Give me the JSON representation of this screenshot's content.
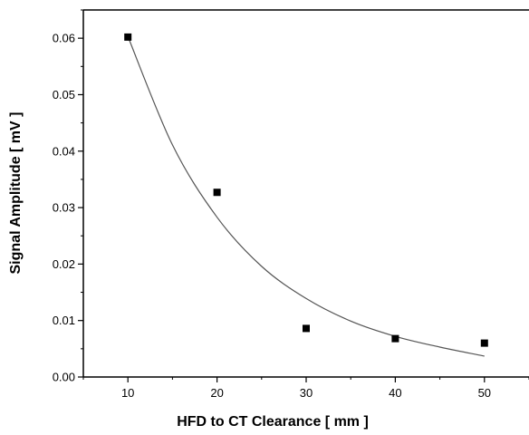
{
  "chart_data": {
    "type": "scatter",
    "title": "",
    "xlabel": "HFD to CT Clearance [ mm ]",
    "ylabel": "Signal Amplitude [ mV ]",
    "xlim": [
      5,
      55
    ],
    "ylim": [
      0,
      0.065
    ],
    "x_ticks": [
      10,
      20,
      30,
      40,
      50
    ],
    "x_tick_labels": [
      "10",
      "20",
      "30",
      "40",
      "50"
    ],
    "y_ticks": [
      0,
      0.01,
      0.02,
      0.03,
      0.04,
      0.05,
      0.06
    ],
    "y_tick_labels": [
      "0.00",
      "0.01",
      "0.02",
      "0.03",
      "0.04",
      "0.05",
      "0.06"
    ],
    "grid": false,
    "legend": "none",
    "series": [
      {
        "marker": "square",
        "color": "#000000",
        "x": [
          10,
          20,
          30,
          40,
          50
        ],
        "y": [
          0.0602,
          0.0327,
          0.0086,
          0.0068,
          0.006
        ]
      }
    ],
    "fit": {
      "type": "exponential",
      "color": "#555555",
      "x": [
        10,
        15,
        20,
        25,
        30,
        35,
        40,
        45,
        50
      ],
      "y": [
        0.0603,
        0.0411,
        0.0283,
        0.0196,
        0.0139,
        0.0099,
        0.0072,
        0.0053,
        0.0037
      ]
    }
  }
}
